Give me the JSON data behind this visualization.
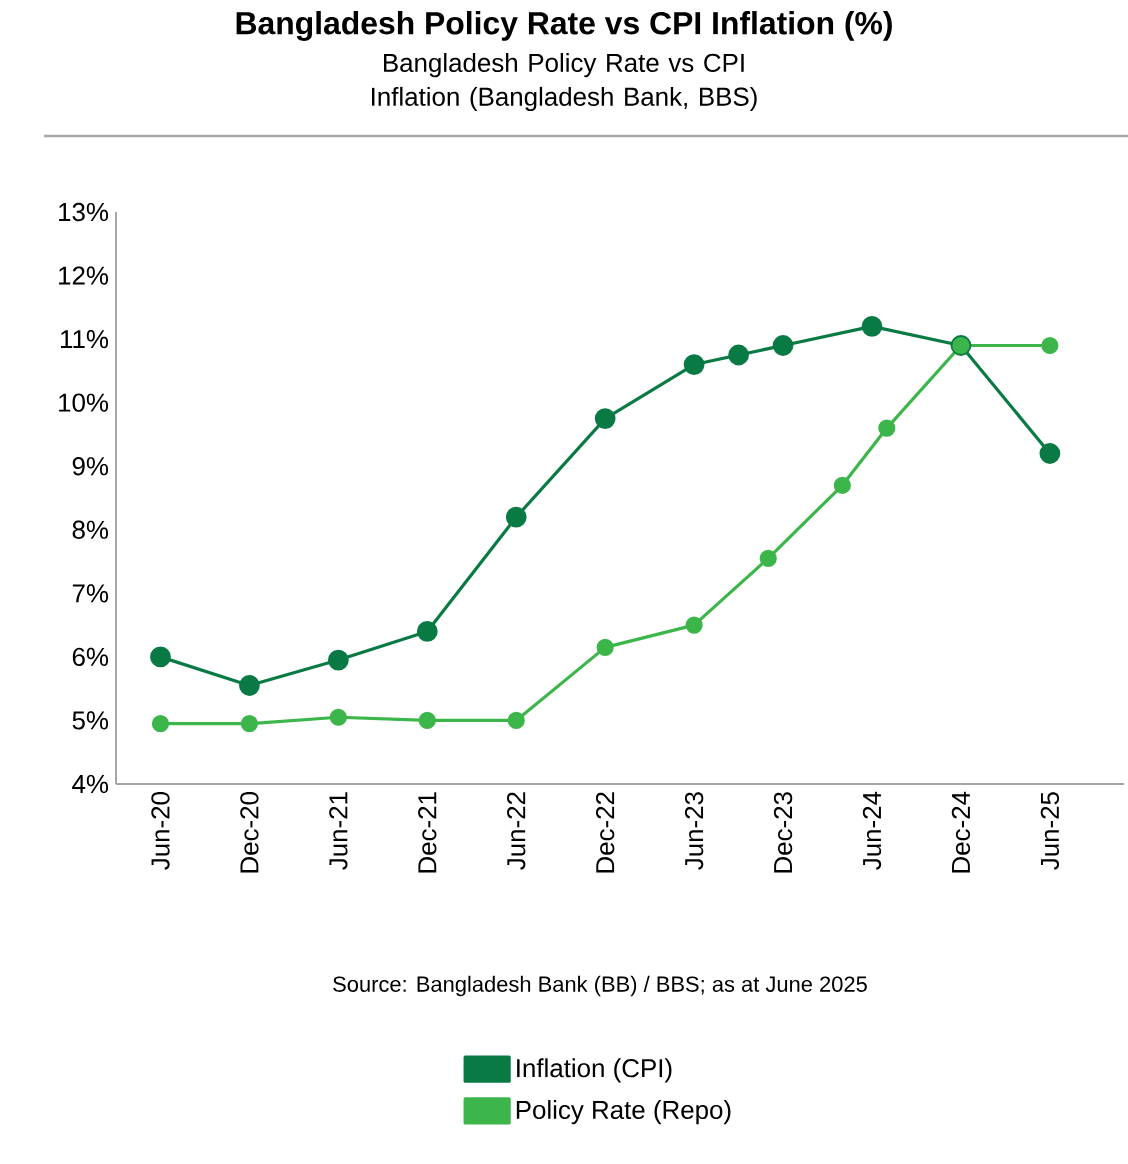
{
  "chart_data": {
    "type": "line",
    "title": "Bangladesh Policy Rate vs CPI Inflation (%)",
    "subtitle": "Bangladesh Policy Rate vs CPI Inflation (Bangladesh Bank, BBS)",
    "annotations": [
      "Source: Bangladesh Bank (BB) / BBS; as at June 2025"
    ],
    "series": [
      {
        "name": "Inflation (CPI)",
        "color": "#0a7a45",
        "x": [
          "2020-06",
          "2020-12",
          "2021-06",
          "2021-12",
          "2022-06",
          "2022-12",
          "2023-06",
          "2023-09",
          "2023-12",
          "2024-06",
          "2024-12",
          "2025-06"
        ],
        "values": [
          6.0,
          5.55,
          5.95,
          6.4,
          8.2,
          9.75,
          10.6,
          10.75,
          10.9,
          11.2,
          10.9,
          9.2
        ]
      },
      {
        "name": "Policy Rate (Repo)",
        "color": "#3cb54a",
        "x": [
          "2020-06",
          "2020-12",
          "2021-06",
          "2021-12",
          "2022-06",
          "2022-12",
          "2023-06",
          "2023-11",
          "2024-04",
          "2024-07",
          "2024-12",
          "2025-06"
        ],
        "values": [
          4.95,
          4.95,
          5.05,
          5.0,
          5.0,
          6.15,
          6.5,
          7.55,
          8.7,
          9.6,
          10.9,
          10.9
        ]
      }
    ],
    "xlim": [
      "2020-03",
      "2025-11"
    ],
    "xticks": [
      {
        "value": "2020-06",
        "label": "Jun-20"
      },
      {
        "value": "2020-12",
        "label": "Dec-20"
      },
      {
        "value": "2021-06",
        "label": "Jun-21"
      },
      {
        "value": "2021-12",
        "label": "Dec-21"
      },
      {
        "value": "2022-06",
        "label": "Jun-22"
      },
      {
        "value": "2022-12",
        "label": "Dec-22"
      },
      {
        "value": "2023-06",
        "label": "Jun-23"
      },
      {
        "value": "2023-12",
        "label": "Dec-23"
      },
      {
        "value": "2024-06",
        "label": "Jun-24"
      },
      {
        "value": "2024-12",
        "label": "Dec-24"
      },
      {
        "value": "2025-06",
        "label": "Jun-25"
      }
    ],
    "ylim": [
      4,
      13
    ],
    "yticks": [
      {
        "value": 4,
        "label": "4%"
      },
      {
        "value": 5,
        "label": "5%"
      },
      {
        "value": 6,
        "label": "6%"
      },
      {
        "value": 7,
        "label": "7%"
      },
      {
        "value": 8,
        "label": "8%"
      },
      {
        "value": 9,
        "label": "9%"
      },
      {
        "value": 10,
        "label": "10%"
      },
      {
        "value": 11,
        "label": "11%"
      },
      {
        "value": 12,
        "label": "12%"
      },
      {
        "value": 13,
        "label": "13%"
      }
    ],
    "grid": false,
    "legend": "bottom",
    "marker": "circle",
    "line_style": "solid"
  }
}
